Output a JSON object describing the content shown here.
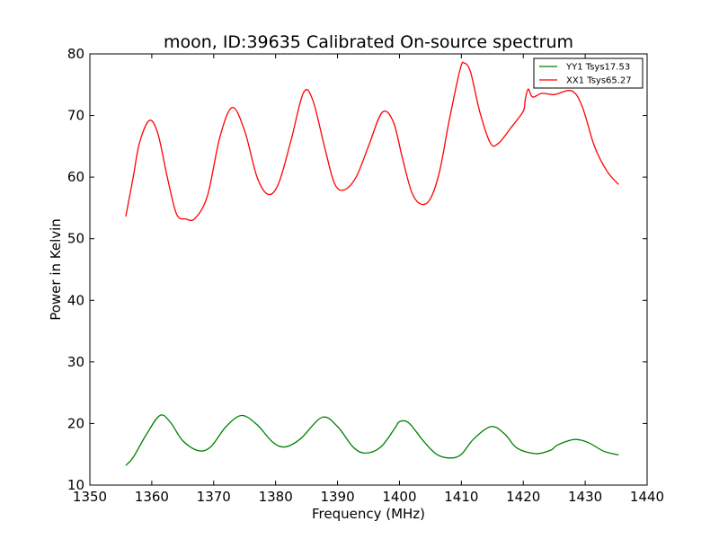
{
  "chart_data": {
    "type": "line",
    "title": "moon, ID:39635 Calibrated On-source spectrum",
    "xlabel": "Frequency (MHz)",
    "ylabel": "Power in Kelvin",
    "xlim": [
      1350,
      1440
    ],
    "ylim": [
      10,
      80
    ],
    "xticks": [
      "1350",
      "1360",
      "1370",
      "1380",
      "1390",
      "1400",
      "1410",
      "1420",
      "1430",
      "1440"
    ],
    "yticks": [
      "10",
      "20",
      "30",
      "40",
      "50",
      "60",
      "70",
      "80"
    ],
    "grid": false,
    "legend_position": "top-right",
    "series": [
      {
        "name": "YY1 Tsys17.53",
        "color": "#008000",
        "x": [
          1355.8,
          1357,
          1359,
          1361.3,
          1363,
          1365,
          1367.5,
          1369.5,
          1372,
          1374.5,
          1377,
          1379.5,
          1381.5,
          1384,
          1387.5,
          1390,
          1392.5,
          1394.5,
          1397,
          1399.3,
          1400,
          1401.5,
          1404,
          1406,
          1408.2,
          1410,
          1412,
          1414.8,
          1417,
          1419,
          1422,
          1424.5,
          1425.5,
          1428.2,
          1430.5,
          1433,
          1435.4
        ],
        "y": [
          13.2,
          14.5,
          18.0,
          21.3,
          20.2,
          17.2,
          15.6,
          16.2,
          19.5,
          21.3,
          19.8,
          17.0,
          16.2,
          17.5,
          21.0,
          19.5,
          16.2,
          15.2,
          16.2,
          19.3,
          20.3,
          20.1,
          17.0,
          15.0,
          14.4,
          15.0,
          17.5,
          19.5,
          18.3,
          16.0,
          15.1,
          15.7,
          16.5,
          17.4,
          16.9,
          15.5,
          14.9
        ]
      },
      {
        "name": "XX1 Tsys65.27",
        "color": "#ff0000",
        "x": [
          1355.8,
          1357,
          1358,
          1359.6,
          1361,
          1362.5,
          1364,
          1365.5,
          1367,
          1369,
          1371,
          1373,
          1375,
          1377,
          1378.8,
          1380.5,
          1382.5,
          1384.5,
          1386,
          1388,
          1389.5,
          1391,
          1393,
          1395,
          1397.2,
          1399,
          1400.5,
          1402,
          1403.5,
          1405,
          1406.5,
          1408,
          1409.8,
          1410.5,
          1411.5,
          1413,
          1414.7,
          1416,
          1418,
          1420,
          1420.3,
          1420.8,
          1421.5,
          1423,
          1425,
          1427.8,
          1429.5,
          1431.5,
          1433.5,
          1435.4
        ],
        "y": [
          53.6,
          60.0,
          65.5,
          69.2,
          67.0,
          60.0,
          54.0,
          53.2,
          53.3,
          57.0,
          66.5,
          71.3,
          67.5,
          60.0,
          57.2,
          59.0,
          66.0,
          73.7,
          72.5,
          64.5,
          59.0,
          57.9,
          60.0,
          65.0,
          70.5,
          69.0,
          63.0,
          57.5,
          55.6,
          56.5,
          61.0,
          69.0,
          77.5,
          78.5,
          77.0,
          70.5,
          65.5,
          65.5,
          68.0,
          70.7,
          72.5,
          74.3,
          73.0,
          73.6,
          73.4,
          74.0,
          71.5,
          65.0,
          61.0,
          58.8
        ]
      }
    ]
  }
}
